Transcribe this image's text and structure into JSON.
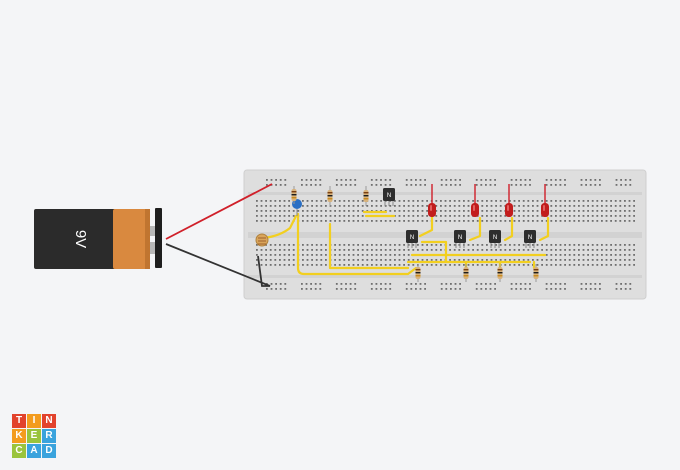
{
  "battery": {
    "label": "9V",
    "body_color": "#2b2b2b",
    "cap_color": "#d9893f"
  },
  "transistor_label": "N",
  "colors": {
    "breadboard": "#dedede",
    "wire_red": "#d0202a",
    "wire_black": "#333333",
    "jumper_yellow": "#f2cf1f",
    "led_red": "#c21d1d",
    "capacitor_blue": "#2a6fc4",
    "transistor": "#2e2e2e"
  },
  "logo": {
    "letters": [
      "T",
      "I",
      "N",
      "K",
      "E",
      "R",
      "C",
      "A",
      "D"
    ],
    "colors": [
      "#e2432d",
      "#f39c1e",
      "#e2432d",
      "#f39c1e",
      "#9ac43c",
      "#3aa3dd",
      "#9ac43c",
      "#3aa3dd",
      "#3aa3dd"
    ]
  }
}
